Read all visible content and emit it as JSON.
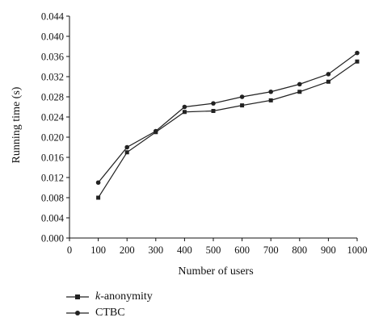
{
  "chart_data": {
    "type": "line",
    "xlabel": "Number of users",
    "ylabel": "Running time (s)",
    "xlim": [
      0,
      1000
    ],
    "ylim": [
      0,
      0.044
    ],
    "x_ticks": [
      "0",
      "100",
      "200",
      "300",
      "400",
      "500",
      "600",
      "700",
      "800",
      "900",
      "1000"
    ],
    "y_ticks": [
      "0.000",
      "0.004",
      "0.008",
      "0.012",
      "0.016",
      "0.020",
      "0.024",
      "0.028",
      "0.032",
      "0.036",
      "0.040",
      "0.044"
    ],
    "grid": false,
    "legend_position": "below",
    "x": [
      100,
      200,
      300,
      400,
      500,
      600,
      700,
      800,
      900,
      1000
    ],
    "series": [
      {
        "name": "k-anonymity",
        "name_prefix": "k",
        "name_suffix": "-anonymity",
        "marker": "square",
        "values": [
          0.008,
          0.017,
          0.021,
          0.025,
          0.0252,
          0.0263,
          0.0273,
          0.029,
          0.031,
          0.035
        ]
      },
      {
        "name": "CTBC",
        "marker": "circle",
        "values": [
          0.011,
          0.018,
          0.0212,
          0.026,
          0.0267,
          0.028,
          0.029,
          0.0305,
          0.0325,
          0.0367
        ]
      }
    ]
  },
  "colors": {
    "line": "#222222",
    "axis": "#111111"
  }
}
